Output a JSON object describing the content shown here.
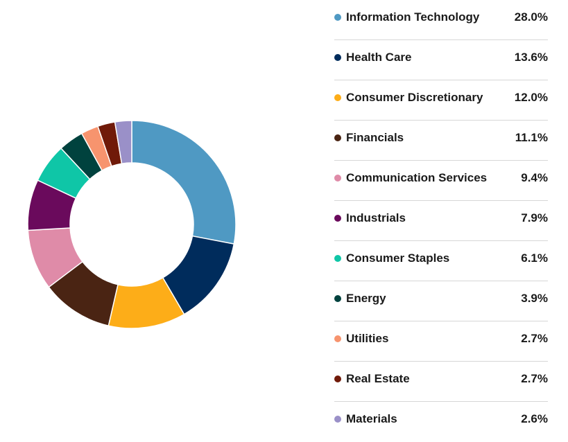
{
  "chart_data": {
    "type": "pie",
    "subtype": "donut",
    "legend_position": "right",
    "title": "",
    "categories": [
      "Information Technology",
      "Health Care",
      "Consumer Discretionary",
      "Financials",
      "Communication Services",
      "Industrials",
      "Consumer Staples",
      "Energy",
      "Utilities",
      "Real Estate",
      "Materials"
    ],
    "values": [
      28.0,
      13.6,
      12.0,
      11.1,
      9.4,
      7.9,
      6.1,
      3.9,
      2.7,
      2.7,
      2.6
    ],
    "value_labels": [
      "28.0%",
      "13.6%",
      "12.0%",
      "11.1%",
      "9.4%",
      "7.9%",
      "6.1%",
      "3.9%",
      "2.7%",
      "2.7%",
      "2.6%"
    ],
    "colors": [
      "#4f99c3",
      "#002c5c",
      "#fdad18",
      "#4a2413",
      "#df8ba8",
      "#6a0a5c",
      "#0fc6a7",
      "#00423e",
      "#f7946e",
      "#701a09",
      "#9a90c8"
    ]
  }
}
